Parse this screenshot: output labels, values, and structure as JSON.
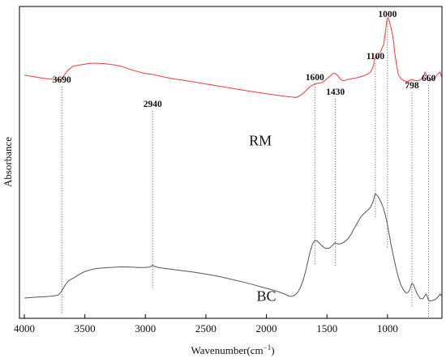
{
  "chart_data": {
    "type": "line",
    "xlabel": "Wavenumber(cm",
    "xlabel_unit_sup": "−1",
    "xlabel_close": ")",
    "ylabel": "Absorbance",
    "xlim": [
      4000,
      550
    ],
    "x_reversed": true,
    "ylim": [
      0,
      1
    ],
    "y_ticks_shown": false,
    "x_ticks": [
      4000,
      3500,
      3000,
      2500,
      2000,
      1500,
      1000
    ],
    "grid": false,
    "colors": {
      "RM": "#f03a3a",
      "BC": "#555555",
      "guides": "#444444",
      "axis": "#000000"
    },
    "peak_lines": [
      {
        "label": "3690",
        "x": 3690
      },
      {
        "label": "2940",
        "x": 2940
      },
      {
        "label": "1600",
        "x": 1600
      },
      {
        "label": "1430",
        "x": 1430
      },
      {
        "label": "1100",
        "x": 1100
      },
      {
        "label": "1000",
        "x": 1000
      },
      {
        "label": "798",
        "x": 798
      },
      {
        "label": "660",
        "x": 660
      }
    ],
    "series": [
      {
        "name": "RM",
        "x": [
          4000,
          3850,
          3720,
          3700,
          3680,
          3640,
          3600,
          3550,
          3500,
          3450,
          3400,
          3350,
          3300,
          3250,
          3200,
          3100,
          3000,
          2940,
          2800,
          2600,
          2400,
          2200,
          2000,
          1850,
          1800,
          1760,
          1740,
          1720,
          1700,
          1680,
          1650,
          1620,
          1600,
          1570,
          1540,
          1510,
          1480,
          1450,
          1430,
          1410,
          1390,
          1370,
          1350,
          1330,
          1300,
          1270,
          1240,
          1210,
          1180,
          1160,
          1140,
          1120,
          1105,
          1095,
          1085,
          1075,
          1060,
          1045,
          1030,
          1015,
          1005,
          998,
          990,
          980,
          970,
          960,
          950,
          940,
          925,
          910,
          895,
          880,
          865,
          850,
          835,
          820,
          810,
          798,
          785,
          770,
          750,
          730,
          715,
          700,
          690,
          680,
          672,
          665,
          660,
          650,
          640,
          620,
          600,
          580,
          565,
          555
        ],
        "y": [
          0.78,
          0.77,
          0.765,
          0.765,
          0.775,
          0.795,
          0.808,
          0.812,
          0.815,
          0.818,
          0.818,
          0.817,
          0.815,
          0.812,
          0.808,
          0.795,
          0.785,
          0.782,
          0.77,
          0.758,
          0.745,
          0.732,
          0.72,
          0.712,
          0.71,
          0.708,
          0.71,
          0.715,
          0.72,
          0.728,
          0.74,
          0.748,
          0.752,
          0.754,
          0.756,
          0.765,
          0.775,
          0.785,
          0.785,
          0.778,
          0.768,
          0.762,
          0.763,
          0.766,
          0.768,
          0.77,
          0.773,
          0.776,
          0.78,
          0.784,
          0.79,
          0.805,
          0.83,
          0.845,
          0.832,
          0.838,
          0.852,
          0.866,
          0.88,
          0.925,
          0.955,
          0.965,
          0.96,
          0.945,
          0.93,
          0.912,
          0.89,
          0.852,
          0.812,
          0.782,
          0.772,
          0.766,
          0.762,
          0.76,
          0.76,
          0.762,
          0.764,
          0.766,
          0.764,
          0.762,
          0.762,
          0.764,
          0.77,
          0.778,
          0.79,
          0.784,
          0.77,
          0.764,
          0.762,
          0.762,
          0.764,
          0.768,
          0.775,
          0.785,
          0.79,
          0.775
        ]
      },
      {
        "name": "BC",
        "x": [
          4000,
          3900,
          3800,
          3750,
          3720,
          3700,
          3680,
          3660,
          3640,
          3620,
          3600,
          3570,
          3540,
          3500,
          3450,
          3400,
          3300,
          3200,
          3100,
          3050,
          3000,
          2960,
          2940,
          2920,
          2880,
          2800,
          2700,
          2600,
          2500,
          2400,
          2300,
          2200,
          2100,
          2000,
          1950,
          1900,
          1850,
          1820,
          1800,
          1780,
          1760,
          1740,
          1720,
          1700,
          1680,
          1660,
          1640,
          1620,
          1600,
          1580,
          1560,
          1540,
          1520,
          1500,
          1480,
          1460,
          1440,
          1430,
          1420,
          1400,
          1380,
          1360,
          1340,
          1320,
          1300,
          1280,
          1260,
          1240,
          1220,
          1200,
          1180,
          1160,
          1140,
          1120,
          1105,
          1100,
          1095,
          1080,
          1060,
          1040,
          1020,
          1000,
          985,
          970,
          950,
          930,
          910,
          890,
          870,
          850,
          835,
          820,
          810,
          798,
          785,
          770,
          750,
          730,
          715,
          700,
          690,
          680,
          672,
          665,
          660,
          650,
          640,
          620,
          600,
          580,
          565,
          555
        ],
        "y": [
          0.065,
          0.068,
          0.07,
          0.072,
          0.075,
          0.082,
          0.095,
          0.108,
          0.118,
          0.124,
          0.128,
          0.135,
          0.142,
          0.15,
          0.156,
          0.16,
          0.163,
          0.165,
          0.164,
          0.163,
          0.163,
          0.165,
          0.17,
          0.166,
          0.162,
          0.158,
          0.153,
          0.148,
          0.142,
          0.135,
          0.126,
          0.117,
          0.107,
          0.096,
          0.091,
          0.085,
          0.078,
          0.072,
          0.07,
          0.072,
          0.076,
          0.084,
          0.098,
          0.118,
          0.145,
          0.178,
          0.212,
          0.238,
          0.25,
          0.248,
          0.24,
          0.232,
          0.226,
          0.224,
          0.225,
          0.232,
          0.24,
          0.242,
          0.24,
          0.238,
          0.24,
          0.244,
          0.25,
          0.258,
          0.27,
          0.285,
          0.298,
          0.312,
          0.325,
          0.334,
          0.341,
          0.348,
          0.356,
          0.373,
          0.395,
          0.4,
          0.398,
          0.392,
          0.378,
          0.36,
          0.335,
          0.3,
          0.268,
          0.235,
          0.198,
          0.162,
          0.132,
          0.108,
          0.092,
          0.082,
          0.082,
          0.088,
          0.1,
          0.112,
          0.108,
          0.092,
          0.075,
          0.064,
          0.062,
          0.066,
          0.074,
          0.078,
          0.07,
          0.062,
          0.058,
          0.056,
          0.056,
          0.058,
          0.062,
          0.07,
          0.078,
          0.072
        ]
      }
    ],
    "series_labels": [
      {
        "text": "RM",
        "x": 2050,
        "y": 0.555
      },
      {
        "text": "BC",
        "x": 2000,
        "y": 0.056
      }
    ]
  }
}
